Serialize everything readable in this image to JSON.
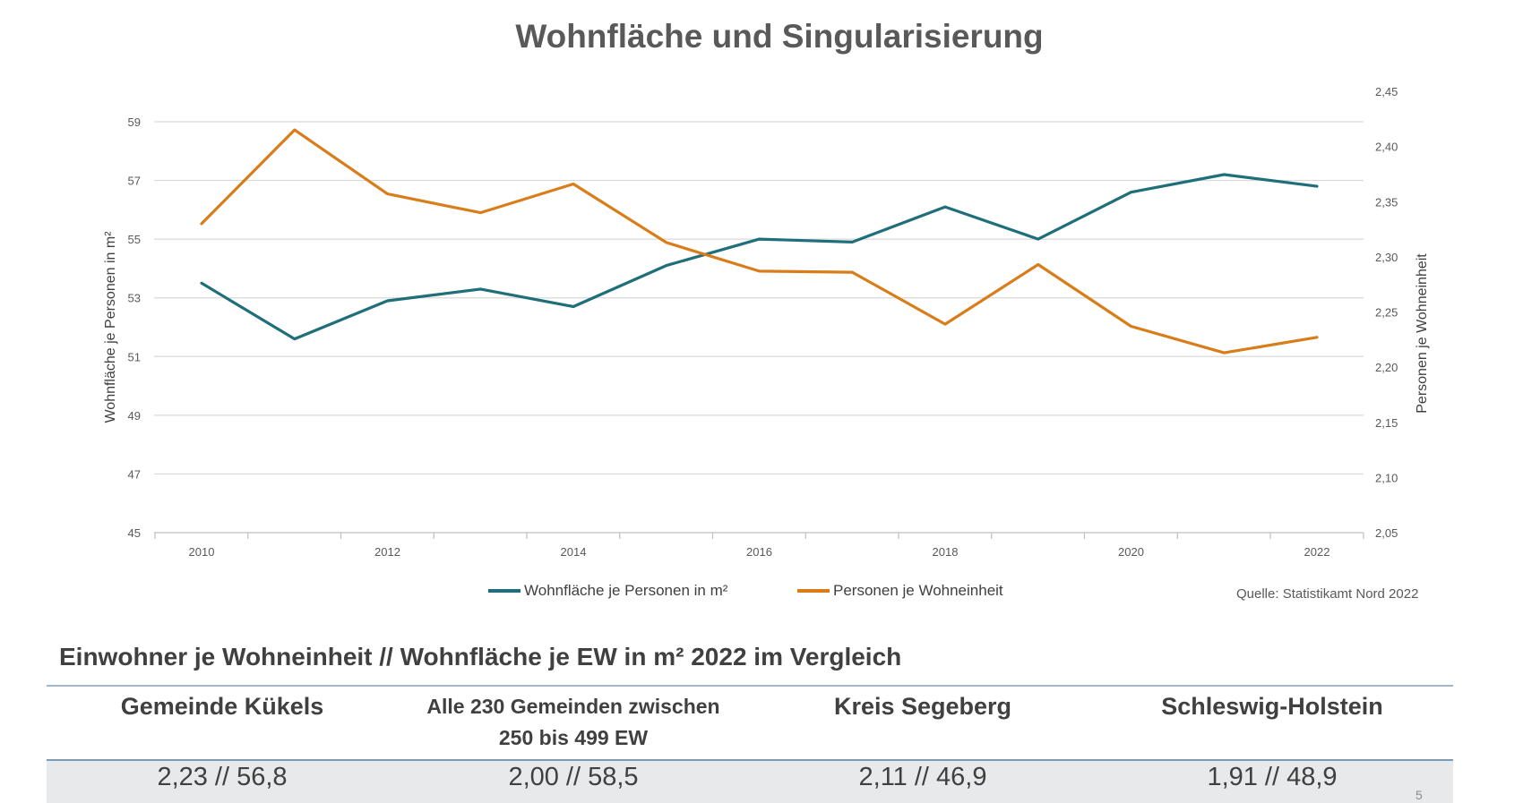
{
  "page": {
    "title": "Wohnfläche und Singularisierung",
    "source": "Quelle: Statistikamt Nord 2022",
    "page_number": "5"
  },
  "comparison": {
    "title": "Einwohner je Wohneinheit // Wohnfläche je EW in m² 2022 im Vergleich",
    "headers": [
      "Gemeinde Kükels",
      "Alle 230 Gemeinden zwischen",
      "250 bis 499 EW",
      "Kreis Segeberg",
      "Schleswig-Holstein"
    ],
    "values": [
      "2,23 // 56,8",
      "2,00 // 58,5",
      "2,11 // 46,9",
      "1,91 // 48,9"
    ]
  },
  "chart_data": {
    "type": "line",
    "title": "Wohnfläche und Singularisierung",
    "x": [
      2010,
      2011,
      2012,
      2013,
      2014,
      2015,
      2016,
      2017,
      2018,
      2019,
      2020,
      2021,
      2022
    ],
    "x_ticks": [
      "2010",
      "2012",
      "2014",
      "2016",
      "2018",
      "2020",
      "2022"
    ],
    "ylabel": "Wohnfläche je Personen in m²",
    "ylim": [
      45,
      59
    ],
    "y_ticks": [
      "45",
      "47",
      "49",
      "51",
      "53",
      "55",
      "57",
      "59"
    ],
    "y2label": "Personen je Wohneinheit",
    "y2lim": [
      2.05,
      2.45
    ],
    "y2_ticks": [
      "2,05",
      "2,10",
      "2,15",
      "2,20",
      "2,25",
      "2,30",
      "2,35",
      "2,40",
      "2,45"
    ],
    "grid": true,
    "legend_position": "bottom",
    "series": [
      {
        "name": "Wohnfläche je Personen in m²",
        "axis": "left",
        "color": "#1f6f7a",
        "values": [
          53.5,
          51.6,
          52.9,
          53.3,
          52.7,
          54.1,
          55.0,
          54.9,
          56.1,
          55.0,
          56.6,
          57.2,
          56.8
        ]
      },
      {
        "name": "Personen je Wohneinheit",
        "axis": "right",
        "color": "#d97c1a",
        "values": [
          2.33,
          2.415,
          2.357,
          2.34,
          2.366,
          2.313,
          2.287,
          2.286,
          2.239,
          2.293,
          2.237,
          2.213,
          2.227
        ]
      }
    ]
  }
}
